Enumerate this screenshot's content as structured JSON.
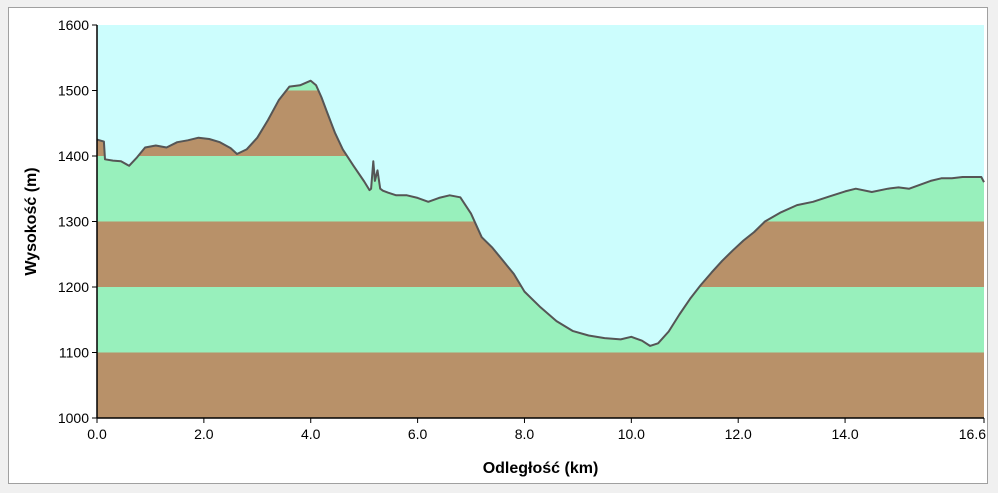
{
  "chart_data": {
    "type": "area",
    "xlabel": "Odległość  (km)",
    "ylabel": "Wysokość (m)",
    "xlim": [
      0,
      16.6
    ],
    "ylim": [
      1000,
      1600
    ],
    "x_ticks": [
      0,
      2,
      4,
      6,
      8,
      10,
      12,
      14,
      16.6
    ],
    "x_tick_labels": [
      "0.0",
      "2.0",
      "4.0",
      "6.0",
      "8.0",
      "10.0",
      "12.0",
      "14.0",
      "16.6"
    ],
    "y_ticks": [
      1000,
      1100,
      1200,
      1300,
      1400,
      1500,
      1600
    ],
    "y_tick_labels": [
      "1000",
      "1100",
      "1200",
      "1300",
      "1400",
      "1500",
      "1600"
    ],
    "bands": [
      {
        "from": 1000,
        "to": 1100,
        "color": "#b89169"
      },
      {
        "from": 1100,
        "to": 1200,
        "color": "#98f0bc"
      },
      {
        "from": 1200,
        "to": 1300,
        "color": "#b89169"
      },
      {
        "from": 1300,
        "to": 1400,
        "color": "#98f0bc"
      },
      {
        "from": 1400,
        "to": 1500,
        "color": "#b89169"
      },
      {
        "from": 1500,
        "to": 1600,
        "color": "#98f0bc"
      }
    ],
    "sky_color": "#ccfdfd",
    "line_color": "#555555",
    "series": [
      {
        "x": [
          0,
          0.13,
          0.15,
          0.3,
          0.45,
          0.6,
          0.75,
          0.9,
          1.1,
          1.3,
          1.5,
          1.7,
          1.9,
          2.1,
          2.3,
          2.5,
          2.62,
          2.8,
          3.0,
          3.2,
          3.4,
          3.6,
          3.8,
          4.0,
          4.1,
          4.2,
          4.3,
          4.45,
          4.6,
          4.8,
          5.0,
          5.1,
          5.13,
          5.17,
          5.2,
          5.25,
          5.3,
          5.35,
          5.45,
          5.6,
          5.8,
          6.0,
          6.2,
          6.4,
          6.6,
          6.8,
          7.0,
          7.2,
          7.4,
          7.6,
          7.8,
          8.0,
          8.3,
          8.6,
          8.9,
          9.2,
          9.5,
          9.8,
          10.0,
          10.2,
          10.35,
          10.5,
          10.7,
          10.9,
          11.1,
          11.3,
          11.5,
          11.7,
          11.9,
          12.1,
          12.3,
          12.5,
          12.8,
          13.1,
          13.4,
          13.7,
          14.0,
          14.2,
          14.5,
          14.8,
          15.0,
          15.2,
          15.4,
          15.6,
          15.8,
          16.0,
          16.2,
          16.4,
          16.55,
          16.6
        ],
        "y": [
          1425,
          1422,
          1395,
          1393,
          1392,
          1385,
          1398,
          1413,
          1416,
          1413,
          1421,
          1424,
          1428,
          1426,
          1421,
          1412,
          1403,
          1410,
          1428,
          1455,
          1485,
          1506,
          1508,
          1515,
          1508,
          1490,
          1468,
          1436,
          1410,
          1385,
          1361,
          1348,
          1350,
          1392,
          1362,
          1378,
          1350,
          1347,
          1344,
          1340,
          1340,
          1336,
          1330,
          1336,
          1340,
          1337,
          1312,
          1276,
          1260,
          1240,
          1220,
          1193,
          1169,
          1148,
          1133,
          1126,
          1122,
          1120,
          1124,
          1118,
          1110,
          1114,
          1132,
          1158,
          1182,
          1203,
          1222,
          1240,
          1256,
          1271,
          1284,
          1300,
          1314,
          1325,
          1330,
          1338,
          1346,
          1350,
          1345,
          1350,
          1352,
          1350,
          1356,
          1362,
          1366,
          1366,
          1368,
          1368,
          1368,
          1360
        ]
      }
    ]
  }
}
